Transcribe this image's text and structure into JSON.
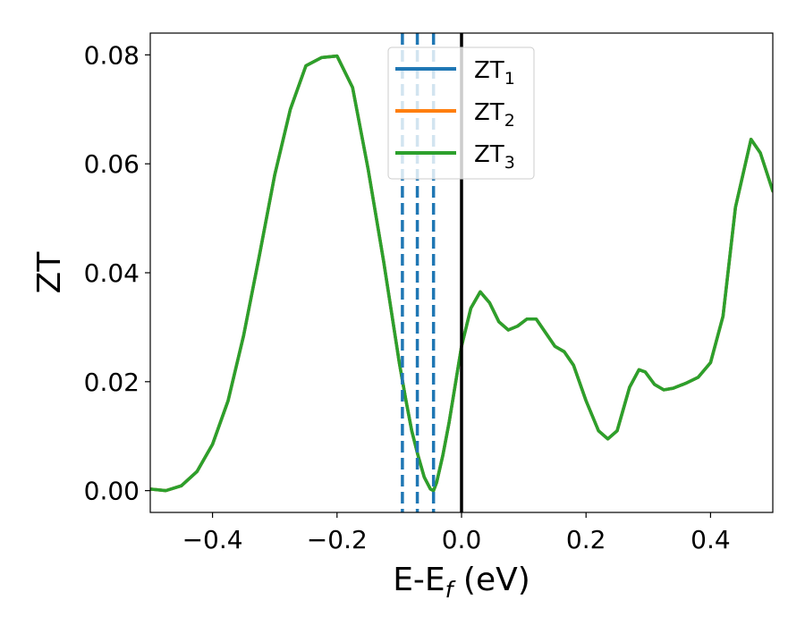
{
  "chart_data": {
    "type": "line",
    "xlabel": {
      "main": "E-E",
      "sub": "f",
      "suffix": " (eV)"
    },
    "ylabel": "ZT",
    "xlim": [
      -0.5,
      0.5
    ],
    "ylim": [
      -0.004,
      0.084
    ],
    "xticks": [
      -0.4,
      -0.2,
      0.0,
      0.2,
      0.4
    ],
    "xtick_labels": [
      "−0.4",
      "−0.2",
      "0.0",
      "0.2",
      "0.4"
    ],
    "yticks": [
      0.0,
      0.02,
      0.04,
      0.06,
      0.08
    ],
    "ytick_labels": [
      "0.00",
      "0.02",
      "0.04",
      "0.06",
      "0.08"
    ],
    "grid": false,
    "legend_position": "top-center",
    "series": [
      {
        "name": "ZT",
        "sub": "1",
        "color": "#1f77b4",
        "values": "shared"
      },
      {
        "name": "ZT",
        "sub": "2",
        "color": "#ff7f0e",
        "values": "shared"
      },
      {
        "name": "ZT",
        "sub": "3",
        "color": "#2ca02c",
        "values": "shared"
      }
    ],
    "x": [
      -0.5,
      -0.475,
      -0.45,
      -0.425,
      -0.4,
      -0.375,
      -0.35,
      -0.325,
      -0.3,
      -0.275,
      -0.25,
      -0.225,
      -0.2,
      -0.175,
      -0.15,
      -0.125,
      -0.1,
      -0.09,
      -0.08,
      -0.07,
      -0.06,
      -0.05,
      -0.045,
      -0.04,
      -0.03,
      -0.02,
      -0.01,
      0.0,
      0.015,
      0.03,
      0.045,
      0.06,
      0.075,
      0.09,
      0.105,
      0.12,
      0.135,
      0.15,
      0.165,
      0.18,
      0.2,
      0.22,
      0.235,
      0.25,
      0.27,
      0.285,
      0.295,
      0.31,
      0.325,
      0.34,
      0.36,
      0.38,
      0.4,
      0.42,
      0.44,
      0.465,
      0.48,
      0.5
    ],
    "y": [
      0.0003,
      0.0,
      0.0009,
      0.0035,
      0.0085,
      0.0165,
      0.0285,
      0.043,
      0.058,
      0.07,
      0.078,
      0.0795,
      0.0798,
      0.074,
      0.059,
      0.042,
      0.0235,
      0.017,
      0.011,
      0.0065,
      0.0025,
      0.0003,
      0.0,
      0.0015,
      0.0065,
      0.0125,
      0.0195,
      0.0265,
      0.0335,
      0.0365,
      0.0345,
      0.031,
      0.0295,
      0.0302,
      0.0315,
      0.0315,
      0.029,
      0.0265,
      0.0255,
      0.023,
      0.0165,
      0.011,
      0.0095,
      0.011,
      0.019,
      0.0222,
      0.0218,
      0.0195,
      0.0185,
      0.0188,
      0.0197,
      0.0208,
      0.0235,
      0.032,
      0.052,
      0.0645,
      0.062,
      0.055
    ],
    "vlines": [
      {
        "x": -0.095,
        "style": "dashed",
        "color": "#1f77b4"
      },
      {
        "x": -0.071,
        "style": "dashed",
        "color": "#1f77b4"
      },
      {
        "x": -0.045,
        "style": "dashed",
        "color": "#1f77b4"
      },
      {
        "x": 0.0,
        "style": "solid",
        "color": "#000000"
      }
    ]
  }
}
